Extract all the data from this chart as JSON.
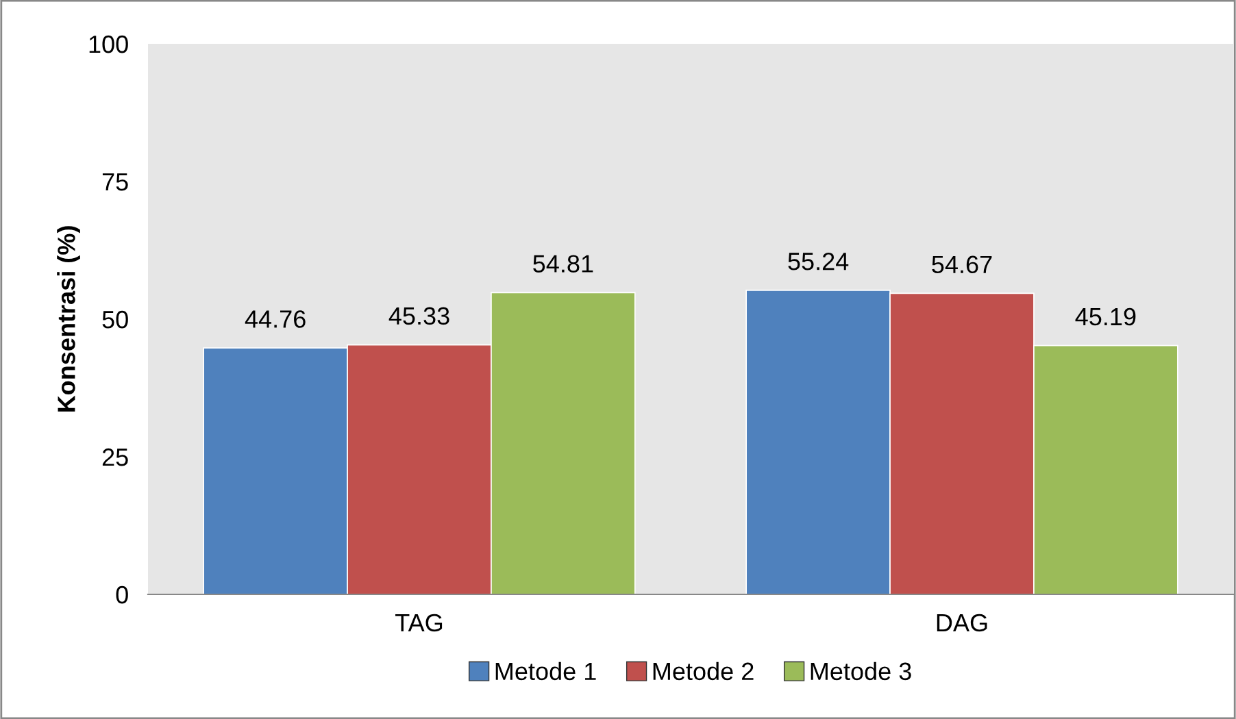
{
  "chart_data": {
    "type": "bar",
    "ylabel": "Konsentrasi (%)",
    "categories": [
      "TAG",
      "DAG"
    ],
    "series": [
      {
        "name": "Metode 1",
        "color": "#4f81bd",
        "values": [
          44.76,
          55.24
        ]
      },
      {
        "name": "Metode 2",
        "color": "#c0504d",
        "values": [
          45.33,
          54.67
        ]
      },
      {
        "name": "Metode 3",
        "color": "#9bbb59",
        "values": [
          54.81,
          45.19
        ]
      }
    ],
    "ylim": [
      0,
      100
    ],
    "yticks": [
      0,
      25,
      50,
      75,
      100
    ],
    "grid": false,
    "legend": "bottom",
    "data_labels": true
  }
}
